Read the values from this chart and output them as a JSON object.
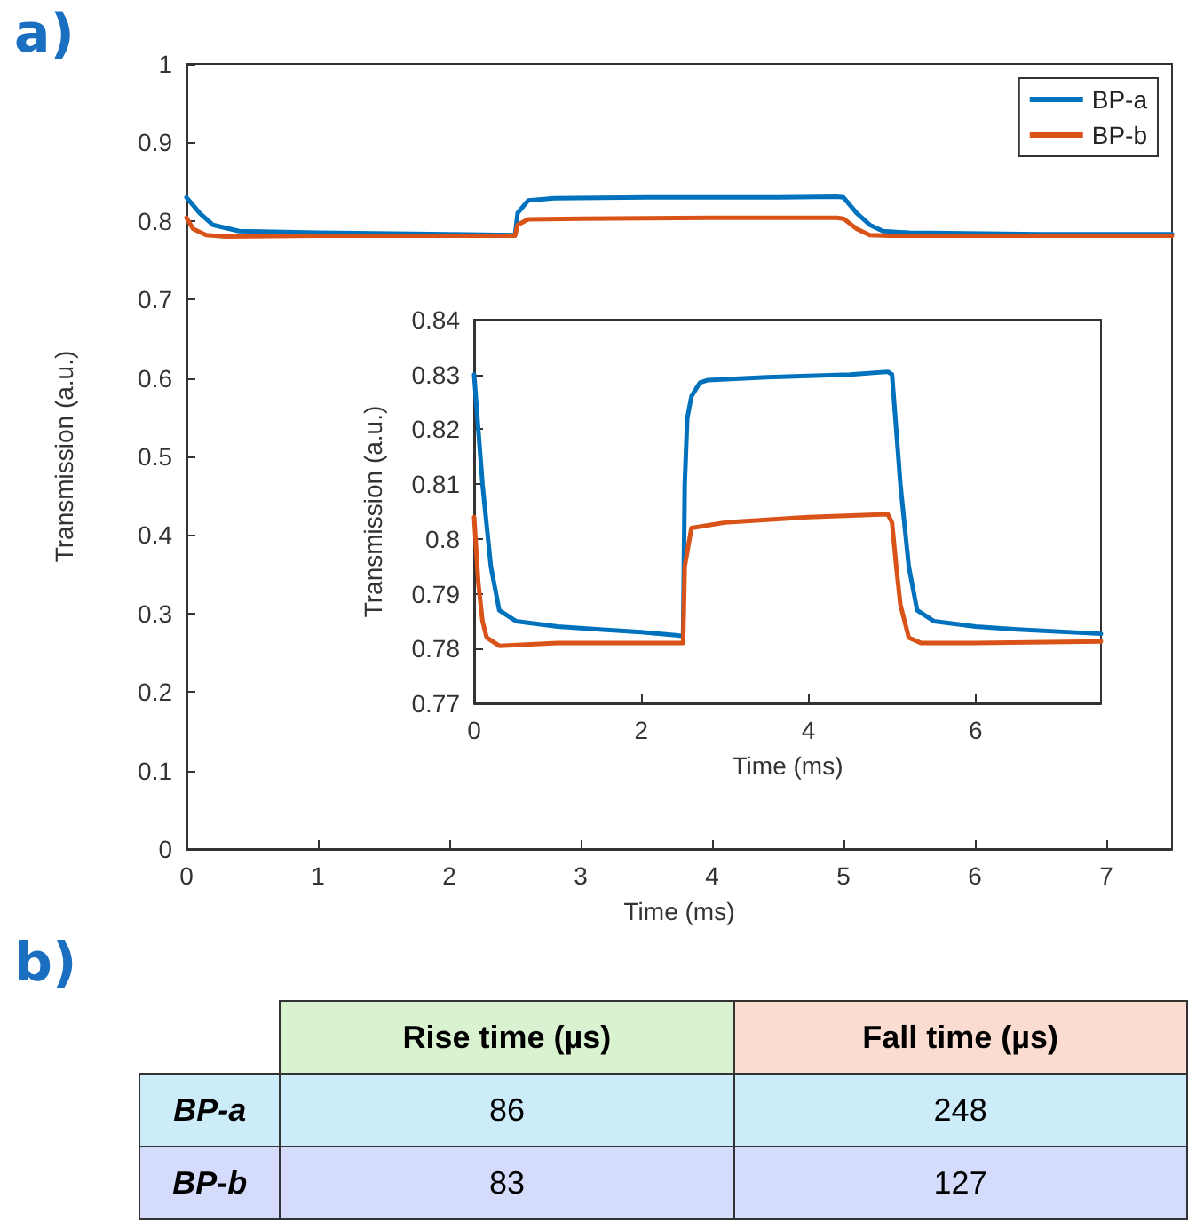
{
  "chart_data": [
    {
      "type": "line",
      "xlabel": "Time (ms)",
      "ylabel": "Transmission (a.u.)",
      "annotations": [
        "a)"
      ],
      "xlim": [
        0,
        7.5
      ],
      "xticks": [
        0,
        1,
        2,
        3,
        4,
        5,
        6,
        7
      ],
      "ylim": [
        0,
        1
      ],
      "yticks": [
        0,
        0.1,
        0.2,
        0.3,
        0.4,
        0.5,
        0.6,
        0.7,
        0.8,
        0.9,
        1
      ],
      "legend": "top right",
      "grid": false,
      "marker": "none",
      "line_style": "solid",
      "series": [
        {
          "name": "BP-a",
          "color": "#0072bd",
          "x": [
            0,
            0.1,
            0.2,
            0.4,
            1,
            2,
            2.5,
            2.52,
            2.6,
            2.8,
            3.5,
            4.5,
            4.95,
            5.0,
            5.1,
            5.2,
            5.3,
            5.5,
            6.5,
            7.5
          ],
          "values": [
            0.83,
            0.81,
            0.795,
            0.787,
            0.785,
            0.783,
            0.782,
            0.81,
            0.826,
            0.829,
            0.83,
            0.83,
            0.831,
            0.83,
            0.81,
            0.795,
            0.787,
            0.785,
            0.783,
            0.783
          ]
        },
        {
          "name": "BP-b",
          "color": "#d95319",
          "x": [
            0,
            0.05,
            0.15,
            0.3,
            1,
            2,
            2.5,
            2.52,
            2.6,
            3,
            4,
            4.95,
            5.0,
            5.1,
            5.2,
            5.35,
            6,
            7.5
          ],
          "values": [
            0.804,
            0.79,
            0.782,
            0.78,
            0.781,
            0.781,
            0.781,
            0.795,
            0.802,
            0.803,
            0.804,
            0.804,
            0.803,
            0.79,
            0.782,
            0.781,
            0.781,
            0.781
          ]
        }
      ]
    },
    {
      "type": "line",
      "xlabel": "Time (ms)",
      "ylabel": "Transmission (a.u.)",
      "xlim": [
        0,
        7.5
      ],
      "xticks": [
        0,
        2,
        4,
        6
      ],
      "ylim": [
        0.77,
        0.84
      ],
      "yticks": [
        0.77,
        0.78,
        0.79,
        0.8,
        0.81,
        0.82,
        0.83,
        0.84
      ],
      "grid": false,
      "marker": "none",
      "line_style": "solid",
      "series": [
        {
          "color": "#0072bd",
          "x": [
            0,
            0.1,
            0.2,
            0.3,
            0.5,
            1,
            1.5,
            2,
            2.5,
            2.52,
            2.55,
            2.6,
            2.7,
            2.8,
            3.5,
            4.5,
            4.95,
            5.0,
            5.1,
            5.2,
            5.3,
            5.5,
            6,
            6.5,
            7.5
          ],
          "values": [
            0.83,
            0.81,
            0.795,
            0.787,
            0.785,
            0.784,
            0.7835,
            0.783,
            0.7823,
            0.81,
            0.822,
            0.826,
            0.8285,
            0.829,
            0.8295,
            0.83,
            0.8305,
            0.83,
            0.81,
            0.795,
            0.787,
            0.785,
            0.784,
            0.7835,
            0.7827
          ]
        },
        {
          "color": "#d95319",
          "x": [
            0,
            0.05,
            0.1,
            0.15,
            0.3,
            1,
            2,
            2.5,
            2.52,
            2.6,
            3,
            4,
            4.95,
            5.0,
            5.05,
            5.1,
            5.2,
            5.35,
            6,
            7.5
          ],
          "values": [
            0.804,
            0.792,
            0.785,
            0.782,
            0.7805,
            0.781,
            0.781,
            0.781,
            0.795,
            0.802,
            0.803,
            0.804,
            0.8045,
            0.803,
            0.795,
            0.788,
            0.782,
            0.781,
            0.781,
            0.7813
          ]
        }
      ]
    },
    {
      "type": "other",
      "annotations": [
        "b)"
      ],
      "categories": [
        "Rise time (µs)",
        "Fall time (µs)"
      ],
      "data_labels": true,
      "series": [
        {
          "name": "BP-a",
          "color": "#ccecfa",
          "values": [
            86,
            248
          ]
        },
        {
          "name": "BP-b",
          "color": "#d4dbfb",
          "values": [
            83,
            127
          ]
        }
      ]
    }
  ]
}
